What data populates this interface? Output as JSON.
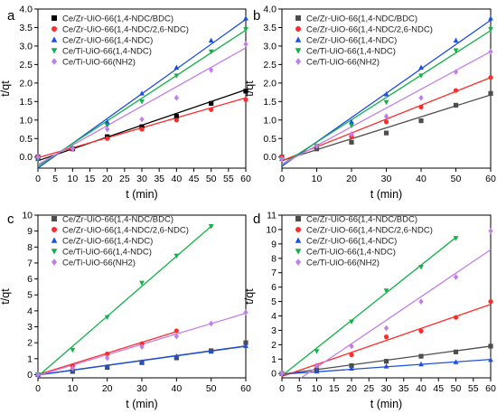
{
  "colors": {
    "s1": "#000000",
    "s2": "#ff2a2a",
    "s3": "#1f4fe0",
    "s4": "#14b04a",
    "s5": "#c27ee8",
    "s1_bd": "#4d4d4d"
  },
  "chart_data": [
    {
      "panel": "a",
      "type": "scatter",
      "xlabel": "t (min)",
      "ylabel": "t/qt",
      "xlim": [
        0,
        60
      ],
      "ylim": [
        -0.3,
        4.0
      ],
      "xticks": [
        0,
        5,
        10,
        15,
        20,
        25,
        30,
        35,
        40,
        45,
        50,
        55,
        60
      ],
      "yticks": [
        0.0,
        0.5,
        1.0,
        1.5,
        2.0,
        2.5,
        3.0,
        3.5,
        4.0
      ],
      "legend_position": "top-left",
      "series": [
        {
          "name": "Ce/Zr-UiO-66(1,4-NDC/BDC)",
          "color_key": "s1",
          "marker": "square",
          "x": [
            0,
            10,
            20,
            30,
            40,
            50,
            60
          ],
          "y": [
            0.0,
            0.22,
            0.55,
            0.82,
            1.1,
            1.45,
            1.78
          ],
          "fit": [
            -0.1,
            1.82
          ]
        },
        {
          "name": "Ce/Zr-UiO-66(1,4-NDC/2,6-NDC)",
          "color_key": "s2",
          "marker": "circle",
          "x": [
            0,
            10,
            20,
            30,
            40,
            50,
            60
          ],
          "y": [
            0.0,
            0.22,
            0.5,
            0.75,
            1.0,
            1.28,
            1.55
          ],
          "fit": [
            -0.02,
            1.6
          ]
        },
        {
          "name": "Ce/Zr-UiO-66(1,4-NDC)",
          "color_key": "s3",
          "marker": "triangle-up",
          "x": [
            0,
            10,
            20,
            30,
            40,
            50,
            60
          ],
          "y": [
            -0.05,
            0.25,
            0.95,
            1.72,
            2.42,
            3.15,
            3.75
          ],
          "fit": [
            -0.3,
            3.72
          ]
        },
        {
          "name": "Ce/Ti-UiO-66(1,4-NDC)",
          "color_key": "s4",
          "marker": "triangle-down",
          "x": [
            0,
            10,
            20,
            30,
            40,
            50,
            60
          ],
          "y": [
            -0.05,
            0.22,
            0.85,
            1.5,
            2.2,
            2.85,
            3.45
          ],
          "fit": [
            -0.25,
            3.43
          ]
        },
        {
          "name": "Ce/Ti-UiO-66(NH2)",
          "color_key": "s5",
          "marker": "diamond",
          "x": [
            0,
            10,
            20,
            30,
            40,
            50,
            60
          ],
          "y": [
            0.0,
            0.22,
            0.75,
            1.02,
            1.6,
            2.35,
            3.05
          ],
          "fit": [
            -0.2,
            2.95
          ]
        }
      ]
    },
    {
      "panel": "b",
      "type": "scatter",
      "xlabel": "t (min)",
      "ylabel": "t/qt",
      "xlim": [
        0,
        60
      ],
      "ylim": [
        -0.3,
        4.0
      ],
      "xticks": [
        0,
        10,
        20,
        30,
        40,
        50,
        60
      ],
      "yticks": [
        0.0,
        0.5,
        1.0,
        1.5,
        2.0,
        2.5,
        3.0,
        3.5,
        4.0
      ],
      "legend_position": "top-left",
      "series": [
        {
          "name": "Ce/Zr-UiO-66(1,4-NDC/BDC)",
          "color_key": "s1_bd",
          "marker": "square",
          "x": [
            0,
            10,
            20,
            30,
            40,
            50,
            60
          ],
          "y": [
            0.0,
            0.22,
            0.4,
            0.65,
            0.98,
            1.4,
            1.72
          ],
          "fit": [
            -0.1,
            1.68
          ]
        },
        {
          "name": "Ce/Zr-UiO-66(1,4-NDC/2,6-NDC)",
          "color_key": "s2",
          "marker": "circle",
          "x": [
            0,
            10,
            20,
            30,
            40,
            50,
            60
          ],
          "y": [
            0.0,
            0.3,
            0.55,
            0.95,
            1.35,
            1.8,
            2.15
          ],
          "fit": [
            -0.1,
            2.15
          ]
        },
        {
          "name": "Ce/Zr-UiO-66(1,4-NDC)",
          "color_key": "s3",
          "marker": "triangle-up",
          "x": [
            0,
            10,
            20,
            30,
            40,
            50,
            60
          ],
          "y": [
            -0.05,
            0.3,
            0.95,
            1.7,
            2.42,
            3.15,
            3.75
          ],
          "fit": [
            -0.25,
            3.7
          ]
        },
        {
          "name": "Ce/Ti-UiO-66(1,4-NDC)",
          "color_key": "s4",
          "marker": "triangle-down",
          "x": [
            0,
            10,
            20,
            30,
            40,
            50,
            60
          ],
          "y": [
            -0.05,
            0.3,
            0.85,
            1.48,
            2.2,
            2.88,
            3.45
          ],
          "fit": [
            -0.2,
            3.42
          ]
        },
        {
          "name": "Ce/Ti-UiO-66(NH2)",
          "color_key": "s5",
          "marker": "diamond",
          "x": [
            0,
            10,
            20,
            30,
            40,
            50,
            60
          ],
          "y": [
            -0.05,
            0.3,
            0.62,
            1.1,
            1.6,
            2.3,
            2.85
          ],
          "fit": [
            -0.2,
            2.85
          ]
        }
      ]
    },
    {
      "panel": "c",
      "type": "scatter",
      "xlabel": "t (min)",
      "ylabel": "t/qt",
      "xlim": [
        0,
        60
      ],
      "ylim": [
        -0.2,
        10
      ],
      "xticks": [
        0,
        10,
        20,
        30,
        40,
        50,
        60
      ],
      "yticks": [
        0,
        1,
        2,
        3,
        4,
        5,
        6,
        7,
        8,
        9,
        10
      ],
      "legend_position": "top-left",
      "series": [
        {
          "name": "Ce/Zr-UiO-66(1,4-NDC/BDC)",
          "color_key": "s1_bd",
          "marker": "square",
          "x": [
            0,
            10,
            20,
            30,
            40,
            50,
            60
          ],
          "y": [
            0.0,
            0.2,
            0.45,
            0.75,
            1.05,
            1.5,
            2.0
          ],
          "fit": [
            -0.02,
            1.8
          ]
        },
        {
          "name": "Ce/Zr-UiO-66(1,4-NDC/2,6-NDC)",
          "color_key": "s2",
          "marker": "circle",
          "x": [
            0,
            10,
            20,
            30,
            40
          ],
          "y": [
            0.0,
            0.55,
            1.3,
            1.95,
            2.75
          ],
          "fit_x": [
            0,
            40
          ],
          "fit": [
            0.0,
            2.7
          ]
        },
        {
          "name": "Ce/Zr-UiO-66(1,4-NDC)",
          "color_key": "s3",
          "marker": "triangle-up",
          "x": [
            0,
            10,
            20,
            30,
            40,
            50,
            60
          ],
          "y": [
            0.0,
            0.25,
            0.5,
            0.8,
            1.15,
            1.45,
            1.8
          ],
          "fit": [
            -0.02,
            1.78
          ]
        },
        {
          "name": "Ce/Ti-UiO-66(1,4-NDC)",
          "color_key": "s4",
          "marker": "triangle-down",
          "x": [
            0,
            10,
            20,
            30,
            40,
            50
          ],
          "y": [
            0.0,
            1.55,
            3.6,
            5.75,
            7.45,
            9.3
          ],
          "fit_x": [
            0,
            50
          ],
          "fit": [
            -0.1,
            9.3
          ]
        },
        {
          "name": "Ce/Ti-UiO-66(NH2)",
          "color_key": "s5",
          "marker": "diamond",
          "x": [
            0,
            10,
            20,
            30,
            40,
            50,
            60
          ],
          "y": [
            0.0,
            0.4,
            1.05,
            1.75,
            2.4,
            3.2,
            3.9
          ],
          "fit": [
            -0.05,
            3.85
          ]
        }
      ]
    },
    {
      "panel": "d",
      "type": "scatter",
      "xlabel": "t (min)",
      "ylabel": "t/qt",
      "xlim": [
        0,
        60
      ],
      "ylim": [
        -0.3,
        11
      ],
      "xticks": [
        0,
        5,
        10,
        15,
        20,
        25,
        30,
        35,
        40,
        45,
        50,
        55,
        60
      ],
      "yticks": [
        0,
        1,
        2,
        3,
        4,
        5,
        6,
        7,
        8,
        9,
        10,
        11
      ],
      "legend_position": "top-left",
      "series": [
        {
          "name": "Ce/Zr-UiO-66(1,4-NDC/BDC)",
          "color_key": "s1_bd",
          "marker": "square",
          "x": [
            0,
            10,
            20,
            30,
            40,
            50,
            60
          ],
          "y": [
            0.0,
            0.25,
            0.55,
            0.85,
            1.2,
            1.5,
            1.9
          ],
          "fit": [
            -0.05,
            1.9
          ]
        },
        {
          "name": "Ce/Zr-UiO-66(1,4-NDC/2,6-NDC)",
          "color_key": "s2",
          "marker": "circle",
          "x": [
            0,
            10,
            20,
            30,
            40,
            50,
            60
          ],
          "y": [
            0.0,
            0.55,
            1.3,
            2.55,
            2.95,
            3.9,
            5.0
          ],
          "fit": [
            -0.2,
            4.8
          ]
        },
        {
          "name": "Ce/Zr-UiO-66(1,4-NDC)",
          "color_key": "s3",
          "marker": "triangle-up",
          "x": [
            0,
            10,
            20,
            30,
            40,
            50,
            60
          ],
          "y": [
            0.0,
            0.15,
            0.35,
            0.5,
            0.65,
            0.8,
            0.95
          ],
          "fit": [
            -0.05,
            0.98
          ]
        },
        {
          "name": "Ce/Ti-UiO-66(1,4-NDC)",
          "color_key": "s4",
          "marker": "triangle-down",
          "x": [
            0,
            10,
            20,
            30,
            40,
            50
          ],
          "y": [
            0.0,
            1.55,
            3.6,
            5.75,
            7.4,
            9.4
          ],
          "fit_x": [
            0,
            50
          ],
          "fit": [
            -0.15,
            9.45
          ]
        },
        {
          "name": "Ce/Ti-UiO-66(NH2)",
          "color_key": "s5",
          "marker": "diamond",
          "x": [
            0,
            10,
            20,
            30,
            40,
            50,
            60
          ],
          "y": [
            0.0,
            0.55,
            1.9,
            3.15,
            5.0,
            6.7,
            9.9
          ],
          "fit_x": [
            5.5,
            60
          ],
          "fit": [
            -0.3,
            8.6
          ]
        }
      ]
    }
  ]
}
